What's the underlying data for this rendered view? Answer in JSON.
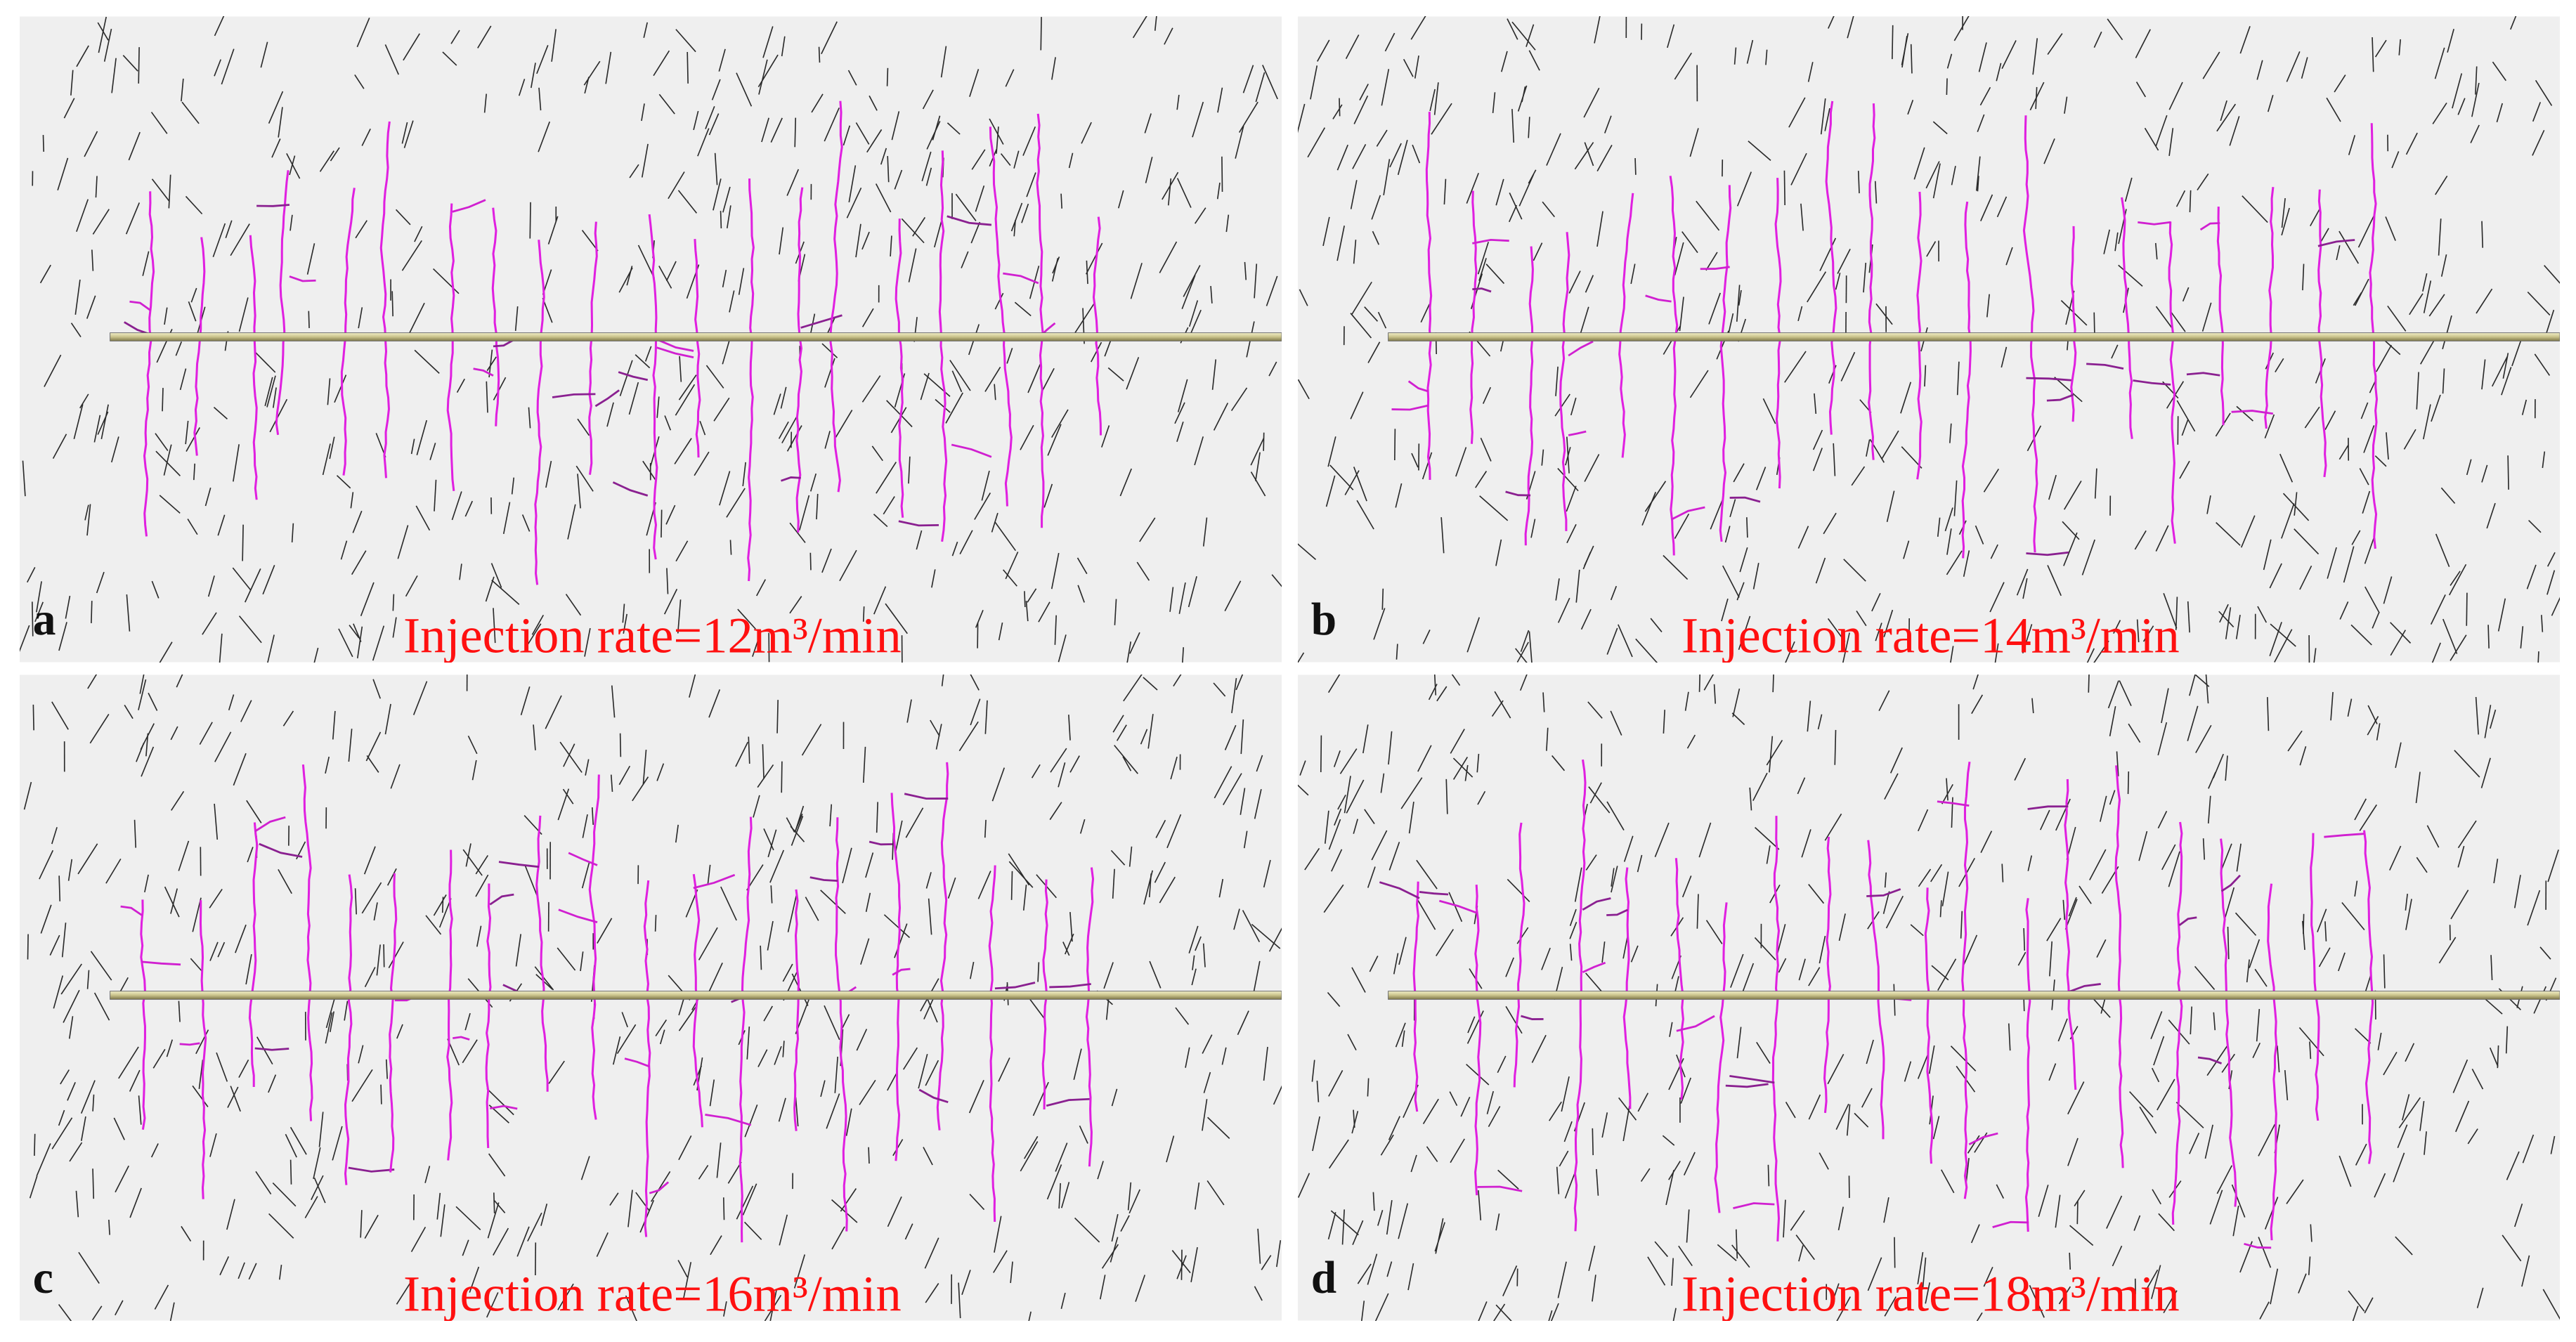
{
  "panels": [
    {
      "letter": "a",
      "label": "Injection rate=12m³/min"
    },
    {
      "letter": "b",
      "label": "Injection rate=14m³/min"
    },
    {
      "letter": "c",
      "label": "Injection rate=16m³/min"
    },
    {
      "letter": "d",
      "label": "Injection rate=18m³/min"
    }
  ]
}
